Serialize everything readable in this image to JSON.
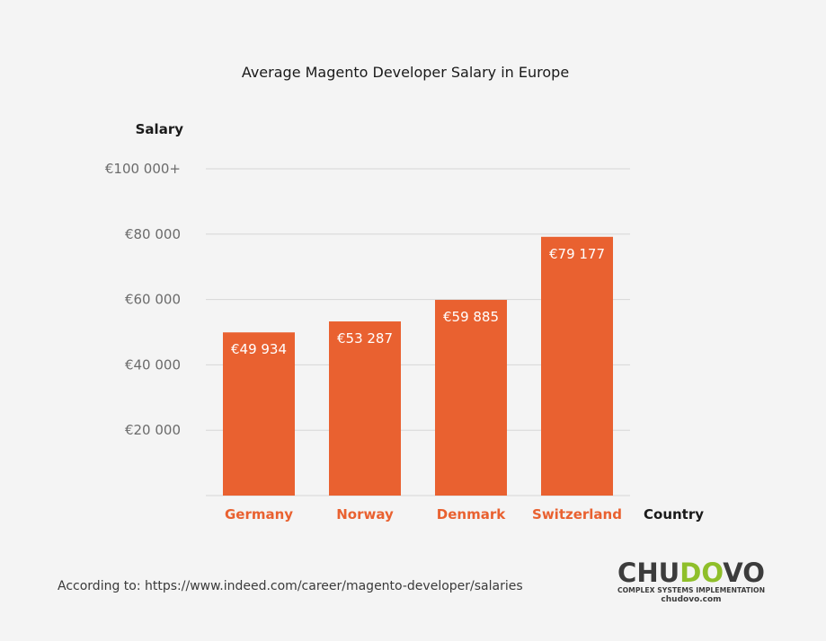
{
  "chart_data": {
    "type": "bar",
    "title": "Average Magento Developer Salary in Europe",
    "xlabel": "Country",
    "ylabel": "Salary",
    "categories": [
      "Germany",
      "Norway",
      "Denmark",
      "Switzerland"
    ],
    "values": [
      49934,
      53287,
      59885,
      79177
    ],
    "value_labels": [
      "€49 934",
      "€53 287",
      "€59 885",
      "€79 177"
    ],
    "yticks": [
      {
        "value": 20000,
        "label": "€20 000"
      },
      {
        "value": 40000,
        "label": "€40 000"
      },
      {
        "value": 60000,
        "label": "€60 000"
      },
      {
        "value": 80000,
        "label": "€80 000"
      },
      {
        "value": 100000,
        "label": "€100 000+"
      }
    ],
    "ylim": [
      0,
      100000
    ],
    "grid": true,
    "colors": {
      "bar": "#e96130",
      "category_label": "#e96130",
      "value_label": "#ffffff",
      "gridline": "#d6d6d6",
      "tick_label": "#6b6b6b",
      "text": "#1a1a1a"
    }
  },
  "footer": {
    "source": "According to: https://www.indeed.com/career/magento-developer/salaries"
  },
  "brand": {
    "name": "CHUDOVO",
    "tagline": "COMPLEX SYSTEMS IMPLEMENTATION",
    "site": "chudovo.com",
    "color_dark": "#3c3c3c",
    "color_accent": "#8fbf2a"
  }
}
